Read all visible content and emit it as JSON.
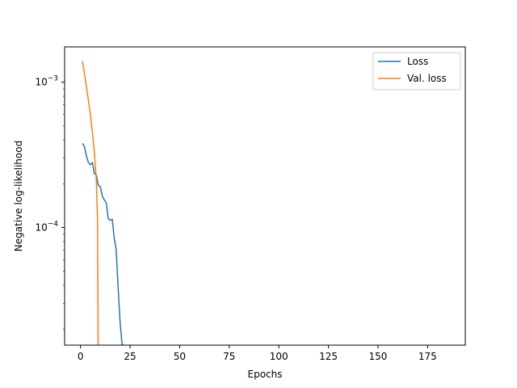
{
  "chart_data": {
    "type": "line",
    "title": "",
    "xlabel": "Epochs",
    "ylabel": "Negative log-likelihood",
    "xscale": "linear",
    "yscale": "log",
    "xlim": [
      -8,
      194
    ],
    "ylim": [
      1.55e-05,
      0.00175
    ],
    "xticks": [
      0,
      25,
      50,
      75,
      100,
      125,
      150,
      175
    ],
    "yticks": [
      {
        "value": 0.001,
        "base": "10",
        "exp": "−3"
      },
      {
        "value": 0.0001,
        "base": "10",
        "exp": "−4"
      }
    ],
    "grid": false,
    "legend_position": "upper right",
    "series": [
      {
        "name": "Loss",
        "color": "#1f77b4",
        "x": [
          1,
          2,
          3,
          4,
          5,
          6,
          7,
          8,
          9,
          10,
          11,
          12,
          13,
          14,
          15,
          16,
          17,
          18,
          19,
          20,
          21,
          22
        ],
        "y": [
          0.00038,
          0.00036,
          0.00031,
          0.00028,
          0.00027,
          0.00028,
          0.000235,
          0.00023,
          0.000195,
          0.00019,
          0.000165,
          0.000155,
          0.000148,
          0.000115,
          0.000112,
          0.000114,
          8.5e-05,
          7e-05,
          3.8e-05,
          2.2e-05,
          1.55e-05,
          1.55e-05
        ]
      },
      {
        "name": "Val. loss",
        "color": "#ff7f0e",
        "x": [
          1,
          2,
          3,
          4,
          5,
          6,
          7,
          8,
          8.6,
          8.9,
          9
        ],
        "y": [
          0.0014,
          0.00115,
          0.00093,
          0.00075,
          0.0006,
          0.00045,
          0.00033,
          0.00021,
          0.00011,
          1.55e-05,
          1.55e-05
        ]
      }
    ]
  }
}
